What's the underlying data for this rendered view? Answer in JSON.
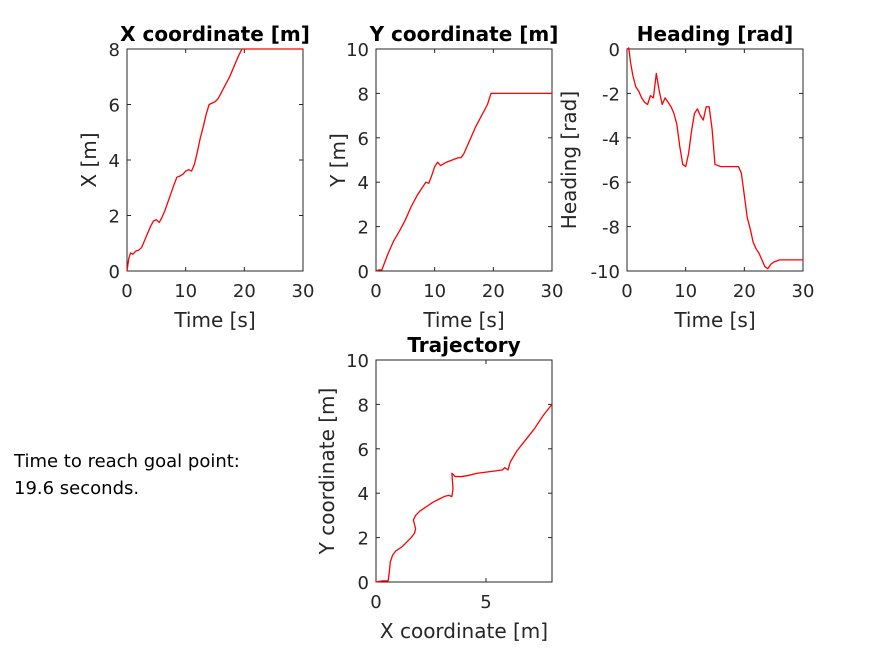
{
  "figure": {
    "background": "#ffffff",
    "axis_color": "#262626",
    "line_color": "#ff0000"
  },
  "note": {
    "line1": "Time to reach goal point:",
    "line2": "19.6 seconds."
  },
  "chart_data": [
    {
      "type": "line",
      "title": "X coordinate [m]",
      "xlabel": "Time [s]",
      "ylabel": "X [m]",
      "xlim": [
        0,
        30
      ],
      "ylim": [
        0,
        8
      ],
      "xticks": [
        0,
        10,
        20,
        30
      ],
      "yticks": [
        0,
        2,
        4,
        6,
        8
      ],
      "grid": false,
      "series": [
        {
          "color": "#ff0000",
          "x": [
            0,
            0.3,
            0.6,
            1.0,
            1.5,
            2.0,
            2.5,
            3.0,
            3.5,
            4.0,
            4.5,
            5.0,
            5.5,
            6.0,
            6.5,
            7.0,
            7.5,
            8.0,
            8.5,
            9.0,
            9.5,
            10.0,
            10.5,
            11.0,
            11.5,
            12.0,
            12.5,
            13.0,
            13.5,
            14.0,
            14.5,
            15.0,
            15.5,
            16.0,
            16.5,
            17.0,
            17.5,
            18.0,
            18.5,
            19.0,
            19.6,
            20.0,
            25.0,
            30.0
          ],
          "y": [
            0,
            0.45,
            0.65,
            0.6,
            0.72,
            0.75,
            0.85,
            1.1,
            1.35,
            1.6,
            1.8,
            1.85,
            1.75,
            1.95,
            2.2,
            2.5,
            2.8,
            3.1,
            3.38,
            3.42,
            3.48,
            3.6,
            3.65,
            3.6,
            3.85,
            4.3,
            4.8,
            5.2,
            5.65,
            6.0,
            6.05,
            6.1,
            6.2,
            6.4,
            6.6,
            6.8,
            7.0,
            7.25,
            7.5,
            7.75,
            8.0,
            8.0,
            8.0,
            8.0
          ]
        }
      ]
    },
    {
      "type": "line",
      "title": "Y coordinate [m]",
      "xlabel": "Time [s]",
      "ylabel": "Y [m]",
      "xlim": [
        0,
        30
      ],
      "ylim": [
        0,
        10
      ],
      "xticks": [
        0,
        10,
        20,
        30
      ],
      "yticks": [
        0,
        2,
        4,
        6,
        8,
        10
      ],
      "grid": false,
      "series": [
        {
          "color": "#ff0000",
          "x": [
            0,
            0.5,
            1.0,
            1.5,
            2.0,
            3.0,
            4.0,
            5.0,
            6.0,
            7.0,
            8.0,
            8.5,
            9.0,
            9.5,
            10.0,
            10.5,
            11.0,
            12.0,
            13.0,
            14.0,
            14.5,
            15.0,
            16.0,
            17.0,
            18.0,
            19.0,
            19.6,
            20.0,
            25.0,
            30.0
          ],
          "y": [
            0,
            0.05,
            0.05,
            0.4,
            0.75,
            1.35,
            1.8,
            2.3,
            2.9,
            3.4,
            3.8,
            4.0,
            3.95,
            4.3,
            4.7,
            4.9,
            4.75,
            4.9,
            5.0,
            5.1,
            5.1,
            5.3,
            5.9,
            6.5,
            7.0,
            7.5,
            8.0,
            8.0,
            8.0,
            8.0
          ]
        }
      ]
    },
    {
      "type": "line",
      "title": "Heading [rad]",
      "xlabel": "Time [s]",
      "ylabel": "Heading [rad]",
      "xlim": [
        0,
        30
      ],
      "ylim": [
        -10,
        0
      ],
      "xticks": [
        0,
        10,
        20,
        30
      ],
      "yticks": [
        -10,
        -8,
        -6,
        -4,
        -2,
        0
      ],
      "grid": false,
      "series": [
        {
          "color": "#ff0000",
          "x": [
            0,
            0.3,
            0.6,
            1.0,
            1.5,
            2.0,
            2.5,
            3.0,
            3.5,
            4.0,
            4.5,
            5.0,
            5.5,
            6.0,
            6.5,
            7.0,
            7.5,
            8.0,
            8.5,
            9.0,
            9.5,
            10.0,
            10.5,
            11.0,
            11.5,
            12.0,
            12.5,
            13.0,
            13.5,
            14.0,
            14.5,
            15.0,
            16.0,
            17.0,
            18.0,
            19.0,
            19.5,
            20.0,
            20.5,
            21.0,
            21.5,
            22.0,
            22.5,
            23.0,
            23.5,
            24.0,
            24.5,
            25.0,
            25.5,
            26.0,
            27.0,
            28.0,
            30.0
          ],
          "y": [
            0,
            0.05,
            -0.6,
            -1.2,
            -1.7,
            -1.9,
            -2.2,
            -2.4,
            -2.5,
            -2.1,
            -2.2,
            -1.1,
            -1.9,
            -2.5,
            -2.2,
            -2.4,
            -2.6,
            -2.9,
            -3.4,
            -4.4,
            -5.2,
            -5.3,
            -4.7,
            -3.7,
            -2.9,
            -2.7,
            -3.0,
            -3.2,
            -2.6,
            -2.6,
            -3.6,
            -5.2,
            -5.3,
            -5.3,
            -5.3,
            -5.3,
            -5.6,
            -6.6,
            -7.6,
            -8.1,
            -8.7,
            -9.0,
            -9.2,
            -9.5,
            -9.8,
            -9.9,
            -9.7,
            -9.6,
            -9.55,
            -9.5,
            -9.5,
            -9.5,
            -9.5
          ]
        }
      ]
    },
    {
      "type": "line",
      "title": "Trajectory",
      "xlabel": "X coordinate [m]",
      "ylabel": "Y coordinate [m]",
      "xlim": [
        0,
        8
      ],
      "ylim": [
        0,
        10
      ],
      "xticks": [
        0,
        5
      ],
      "yticks": [
        0,
        2,
        4,
        6,
        8,
        10
      ],
      "grid": false,
      "series": [
        {
          "color": "#ff0000",
          "x": [
            0,
            0.1,
            0.3,
            0.55,
            0.6,
            0.65,
            0.75,
            0.9,
            1.2,
            1.4,
            1.6,
            1.75,
            1.8,
            1.7,
            1.8,
            2.0,
            2.3,
            2.6,
            2.9,
            3.1,
            3.3,
            3.45,
            3.5,
            3.45,
            3.6,
            3.9,
            4.2,
            4.6,
            5.0,
            5.4,
            5.75,
            5.85,
            6.0,
            6.1,
            6.4,
            6.8,
            7.2,
            7.6,
            8.0
          ],
          "y": [
            0,
            0.02,
            0.05,
            0.05,
            0.4,
            0.9,
            1.2,
            1.4,
            1.6,
            1.8,
            2.0,
            2.2,
            2.4,
            2.8,
            3.0,
            3.2,
            3.4,
            3.6,
            3.75,
            3.85,
            3.9,
            3.85,
            4.2,
            4.9,
            4.75,
            4.75,
            4.8,
            4.9,
            4.95,
            5.0,
            5.05,
            5.15,
            5.05,
            5.4,
            5.9,
            6.4,
            6.9,
            7.5,
            8.0
          ]
        }
      ]
    }
  ]
}
